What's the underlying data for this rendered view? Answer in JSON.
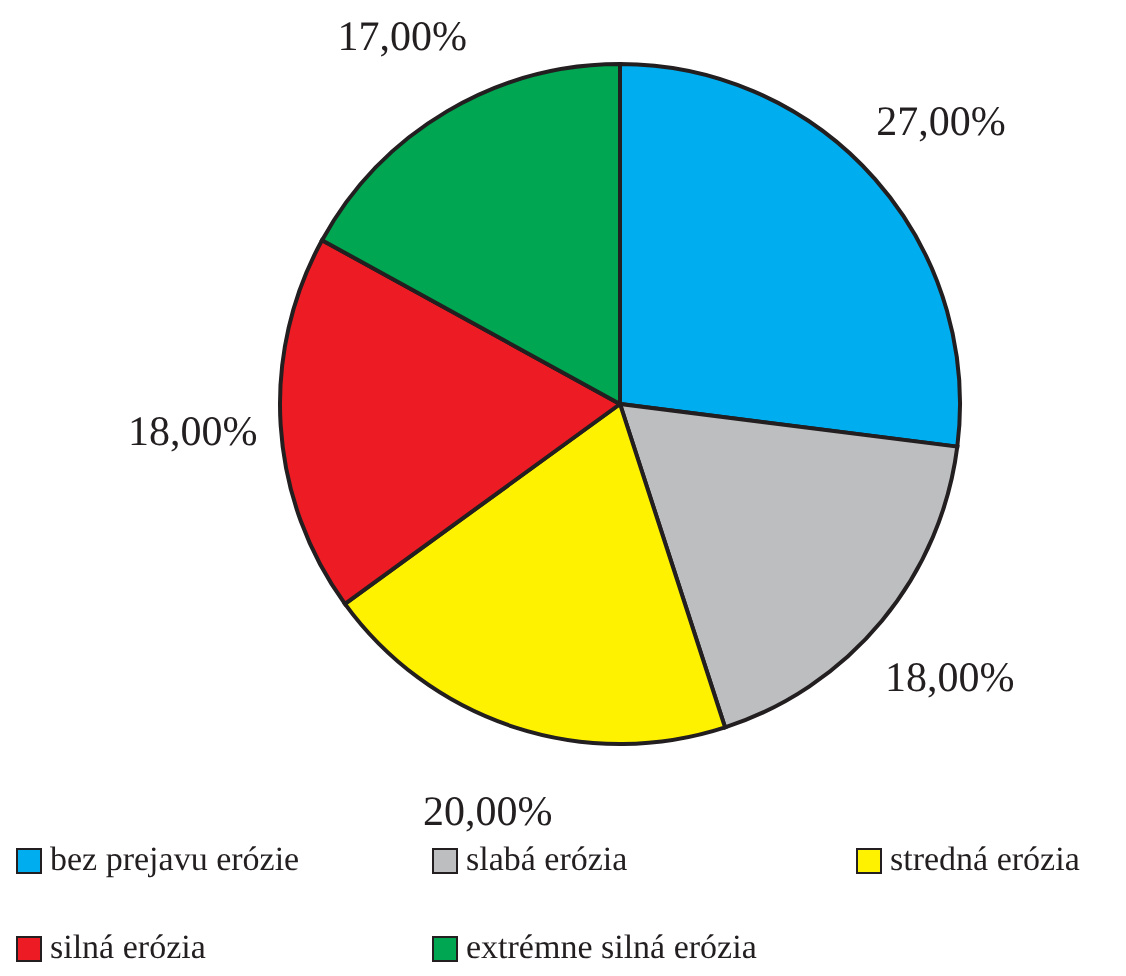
{
  "chart_data": {
    "type": "pie",
    "categories": [
      "bez prejavu erózie",
      "slabá erózia",
      "stredná erózia",
      "silná erózia",
      "extrémne silná erózia"
    ],
    "values": [
      27,
      18,
      20,
      18,
      17
    ],
    "value_labels": [
      "27,00%",
      "18,00%",
      "20,00%",
      "18,00%",
      "17,00%"
    ],
    "colors": [
      "#00aeef",
      "#bcbec0",
      "#fff200",
      "#ed1c24",
      "#00a651"
    ],
    "legend": "bottom"
  }
}
